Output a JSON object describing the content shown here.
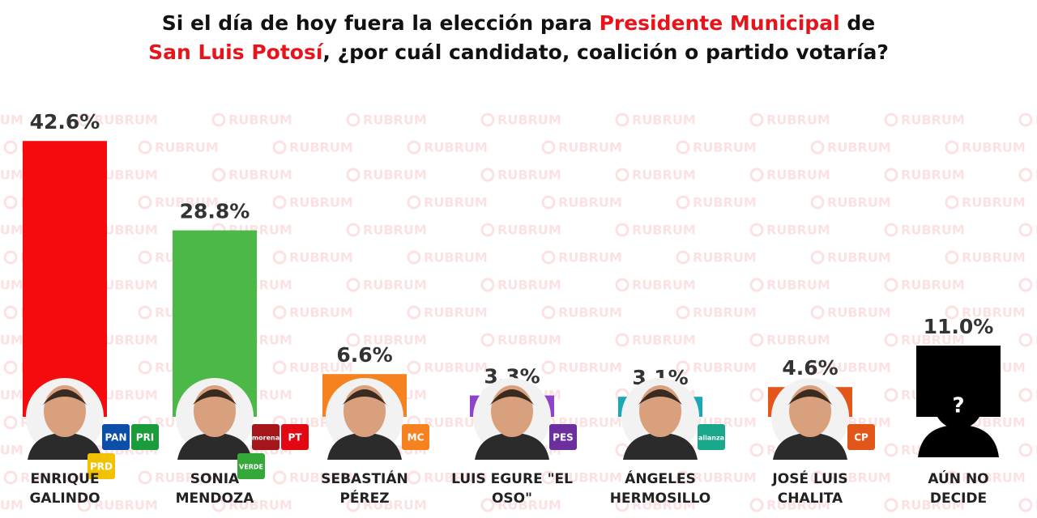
{
  "chart_data": {
    "type": "bar",
    "title_lines": [
      [
        {
          "text": "Si el día de hoy fuera la elección para ",
          "color": "#111111"
        },
        {
          "text": "Presidente Municipal",
          "color": "#e8141c"
        },
        {
          "text": " de",
          "color": "#111111"
        }
      ],
      [
        {
          "text": "San Luis Potosí",
          "color": "#e8141c"
        },
        {
          "text": ", ¿por cuál candidato, coalición o partido votaría?",
          "color": "#111111"
        }
      ]
    ],
    "categories": [
      "ENRIQUE GALINDO",
      "SONIA MENDOZA",
      "SEBASTIÁN PÉREZ",
      "LUIS EGURE \"EL OSO\"",
      "ÁNGELES HERMOSILLO",
      "JOSÉ LUIS CHALITA",
      "AÚN NO DECIDE"
    ],
    "values": [
      42.6,
      28.8,
      6.6,
      3.3,
      3.1,
      4.6,
      11.0
    ],
    "value_labels": [
      "42.6%",
      "28.8%",
      "6.6%",
      "3.3%",
      "3.1%",
      "4.6%",
      "11.0%"
    ],
    "colors": [
      "#f50b0b",
      "#4cb848",
      "#f5821f",
      "#8e44c9",
      "#1aa8b8",
      "#e3561a",
      "#000000"
    ],
    "logos": [
      [
        {
          "text": "PAN",
          "color": "#0b4fa8"
        },
        {
          "text": "PRI",
          "color": "#1a9b3c"
        },
        {
          "text": "PRD",
          "color": "#f2c200"
        }
      ],
      [
        {
          "text": "morena",
          "color": "#a4161a"
        },
        {
          "text": "PT",
          "color": "#e30613"
        },
        {
          "text": "VERDE",
          "color": "#35a83a"
        }
      ],
      [
        {
          "text": "MC",
          "color": "#f5821f"
        }
      ],
      [
        {
          "text": "PES",
          "color": "#6b2f9e"
        }
      ],
      [
        {
          "text": "alianza",
          "color": "#1aa88c"
        }
      ],
      [
        {
          "text": "CP",
          "color": "#e3561a"
        }
      ],
      []
    ],
    "placeholder_symbol": "?",
    "watermark": "RUBRUM"
  }
}
